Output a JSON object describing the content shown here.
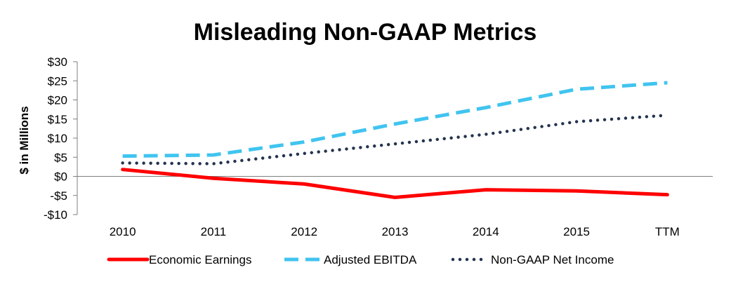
{
  "chart_data": {
    "type": "line",
    "title": "Misleading Non-GAAP Metrics",
    "xlabel": "",
    "ylabel": "$ in Millions",
    "categories": [
      "2010",
      "2011",
      "2012",
      "2013",
      "2014",
      "2015",
      "TTM"
    ],
    "y_tick_labels": [
      "$30",
      "$25",
      "$20",
      "$15",
      "$10",
      "$5",
      "$0",
      "-$5",
      "-$10"
    ],
    "y_tick_values": [
      30,
      25,
      20,
      15,
      10,
      5,
      0,
      -5,
      -10
    ],
    "ylim": [
      -10,
      30
    ],
    "grid": false,
    "legend_position": "bottom",
    "series": [
      {
        "name": "Economic Earnings",
        "values": [
          1.8,
          -0.5,
          -2.0,
          -5.5,
          -3.5,
          -3.8,
          -4.8
        ],
        "color": "#ff0000",
        "style": "solid"
      },
      {
        "name": "Adjusted EBITDA",
        "values": [
          5.3,
          5.6,
          9.0,
          13.7,
          18.0,
          22.8,
          24.5
        ],
        "color": "#40c4f0",
        "style": "dashed"
      },
      {
        "name": "Non-GAAP Net Income",
        "values": [
          3.5,
          3.3,
          6.0,
          8.5,
          11.0,
          14.3,
          16.0
        ],
        "color": "#24344e",
        "style": "dotted"
      }
    ]
  }
}
